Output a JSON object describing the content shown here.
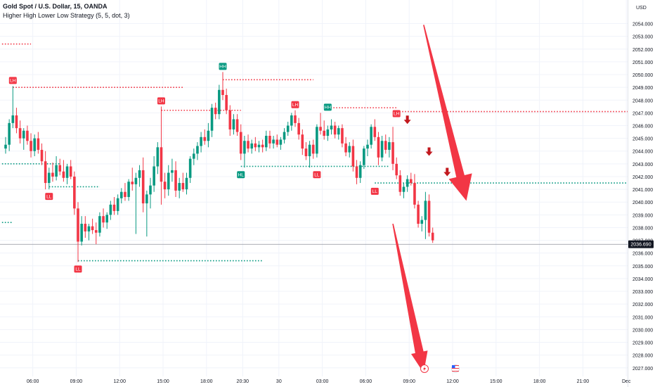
{
  "header": {
    "symbol_line": "Gold Spot / U.S. Dollar, 15, OANDA",
    "indicator_line": "Higher High Lower Low Strategy (5, 5, dot, 3)"
  },
  "chart_data": {
    "type": "candlestick",
    "currency_label": "USD",
    "current_price_label": "2036.690",
    "current_price": 2036.69,
    "ylim": [
      2026.6,
      2055.3
    ],
    "y_ticks": [
      2027,
      2028,
      2029,
      2030,
      2031,
      2032,
      2033,
      2034,
      2035,
      2036,
      2037,
      2038,
      2039,
      2040,
      2041,
      2042,
      2043,
      2044,
      2045,
      2046,
      2047,
      2048,
      2049,
      2050,
      2051,
      2052,
      2053,
      2054
    ],
    "y_tick_labels": [
      "2027.000",
      "2028.000",
      "2029.000",
      "2030.000",
      "2031.000",
      "2032.000",
      "2033.000",
      "2034.000",
      "2035.000",
      "2036.000",
      "2037.000",
      "2038.000",
      "2039.000",
      "2040.000",
      "2041.000",
      "2042.000",
      "2043.000",
      "2044.000",
      "2045.000",
      "2046.000",
      "2047.000",
      "2048.000",
      "2049.000",
      "2050.000",
      "2051.000",
      "2052.000",
      "2053.000",
      "2054.000"
    ],
    "x_ticks": [
      {
        "label": "06:00",
        "index": 7.5
      },
      {
        "label": "09:00",
        "index": 19.5
      },
      {
        "label": "12:00",
        "index": 31.5
      },
      {
        "label": "15:00",
        "index": 43.5
      },
      {
        "label": "18:00",
        "index": 55.5
      },
      {
        "label": "20:30",
        "index": 65.5
      },
      {
        "label": "30",
        "index": 75.5
      },
      {
        "label": "03:00",
        "index": 87.5
      },
      {
        "label": "06:00",
        "index": 99.5
      },
      {
        "label": "09:00",
        "index": 111.5
      },
      {
        "label": "12:00",
        "index": 123.5
      },
      {
        "label": "15:00",
        "index": 135.5
      },
      {
        "label": "18:00",
        "index": 147.5
      },
      {
        "label": "21:00",
        "index": 159.5
      },
      {
        "label": "Dec",
        "index": 171.5
      }
    ],
    "candles": [
      {
        "o": 2044.2,
        "h": 2045.1,
        "l": 2043.8,
        "c": 2044.5
      },
      {
        "o": 2044.5,
        "h": 2046.5,
        "l": 2044.0,
        "c": 2046.2
      },
      {
        "o": 2046.2,
        "h": 2049.1,
        "l": 2045.8,
        "c": 2046.8
      },
      {
        "o": 2046.8,
        "h": 2047.4,
        "l": 2045.4,
        "c": 2045.8
      },
      {
        "o": 2045.8,
        "h": 2046.4,
        "l": 2044.6,
        "c": 2045.0
      },
      {
        "o": 2045.0,
        "h": 2045.8,
        "l": 2044.1,
        "c": 2045.6
      },
      {
        "o": 2045.6,
        "h": 2046.0,
        "l": 2044.5,
        "c": 2044.8
      },
      {
        "o": 2044.8,
        "h": 2045.4,
        "l": 2043.5,
        "c": 2044.0
      },
      {
        "o": 2044.0,
        "h": 2045.3,
        "l": 2043.6,
        "c": 2045.0
      },
      {
        "o": 2045.0,
        "h": 2045.5,
        "l": 2043.8,
        "c": 2044.1
      },
      {
        "o": 2044.1,
        "h": 2044.6,
        "l": 2042.9,
        "c": 2043.2
      },
      {
        "o": 2043.2,
        "h": 2044.0,
        "l": 2041.0,
        "c": 2041.5
      },
      {
        "o": 2041.5,
        "h": 2042.7,
        "l": 2041.0,
        "c": 2042.3
      },
      {
        "o": 2042.3,
        "h": 2043.1,
        "l": 2041.6,
        "c": 2042.0
      },
      {
        "o": 2042.0,
        "h": 2043.6,
        "l": 2041.7,
        "c": 2042.9
      },
      {
        "o": 2042.9,
        "h": 2043.4,
        "l": 2042.1,
        "c": 2042.4
      },
      {
        "o": 2042.4,
        "h": 2043.3,
        "l": 2041.6,
        "c": 2041.9
      },
      {
        "o": 2041.9,
        "h": 2043.0,
        "l": 2041.4,
        "c": 2042.8
      },
      {
        "o": 2042.8,
        "h": 2043.3,
        "l": 2041.8,
        "c": 2042.0
      },
      {
        "o": 2042.0,
        "h": 2042.4,
        "l": 2039.0,
        "c": 2039.5
      },
      {
        "o": 2039.5,
        "h": 2040.0,
        "l": 2035.3,
        "c": 2036.9
      },
      {
        "o": 2036.9,
        "h": 2038.9,
        "l": 2036.6,
        "c": 2038.3
      },
      {
        "o": 2038.3,
        "h": 2038.9,
        "l": 2037.2,
        "c": 2037.7
      },
      {
        "o": 2037.7,
        "h": 2038.3,
        "l": 2037.0,
        "c": 2038.1
      },
      {
        "o": 2038.1,
        "h": 2038.7,
        "l": 2037.5,
        "c": 2037.8
      },
      {
        "o": 2037.8,
        "h": 2038.4,
        "l": 2036.7,
        "c": 2037.6
      },
      {
        "o": 2037.6,
        "h": 2039.2,
        "l": 2037.3,
        "c": 2038.9
      },
      {
        "o": 2038.9,
        "h": 2039.5,
        "l": 2038.0,
        "c": 2038.4
      },
      {
        "o": 2038.4,
        "h": 2039.2,
        "l": 2037.9,
        "c": 2039.0
      },
      {
        "o": 2039.0,
        "h": 2040.1,
        "l": 2038.6,
        "c": 2039.8
      },
      {
        "o": 2039.8,
        "h": 2040.4,
        "l": 2039.0,
        "c": 2039.3
      },
      {
        "o": 2039.3,
        "h": 2040.6,
        "l": 2039.0,
        "c": 2040.3
      },
      {
        "o": 2040.3,
        "h": 2041.1,
        "l": 2039.9,
        "c": 2040.8
      },
      {
        "o": 2040.8,
        "h": 2041.5,
        "l": 2040.1,
        "c": 2040.4
      },
      {
        "o": 2040.4,
        "h": 2041.8,
        "l": 2040.1,
        "c": 2041.6
      },
      {
        "o": 2041.6,
        "h": 2042.7,
        "l": 2040.9,
        "c": 2041.4
      },
      {
        "o": 2041.4,
        "h": 2042.3,
        "l": 2037.5,
        "c": 2041.9
      },
      {
        "o": 2041.9,
        "h": 2042.9,
        "l": 2041.2,
        "c": 2042.5
      },
      {
        "o": 2042.5,
        "h": 2043.5,
        "l": 2039.2,
        "c": 2039.9
      },
      {
        "o": 2039.9,
        "h": 2040.9,
        "l": 2037.3,
        "c": 2040.6
      },
      {
        "o": 2040.6,
        "h": 2041.9,
        "l": 2039.5,
        "c": 2041.3
      },
      {
        "o": 2041.3,
        "h": 2043.6,
        "l": 2040.8,
        "c": 2042.8
      },
      {
        "o": 2042.8,
        "h": 2044.7,
        "l": 2042.2,
        "c": 2044.3
      },
      {
        "o": 2044.3,
        "h": 2047.5,
        "l": 2039.8,
        "c": 2041.6
      },
      {
        "o": 2041.6,
        "h": 2042.3,
        "l": 2040.3,
        "c": 2041.0
      },
      {
        "o": 2041.0,
        "h": 2042.9,
        "l": 2040.5,
        "c": 2042.3
      },
      {
        "o": 2042.3,
        "h": 2043.4,
        "l": 2041.6,
        "c": 2042.5
      },
      {
        "o": 2042.5,
        "h": 2043.2,
        "l": 2040.4,
        "c": 2040.9
      },
      {
        "o": 2040.9,
        "h": 2041.9,
        "l": 2040.3,
        "c": 2041.5
      },
      {
        "o": 2041.5,
        "h": 2042.3,
        "l": 2040.8,
        "c": 2041.0
      },
      {
        "o": 2041.0,
        "h": 2042.3,
        "l": 2040.6,
        "c": 2041.9
      },
      {
        "o": 2041.9,
        "h": 2043.6,
        "l": 2041.5,
        "c": 2043.4
      },
      {
        "o": 2043.4,
        "h": 2044.2,
        "l": 2042.9,
        "c": 2043.8
      },
      {
        "o": 2043.8,
        "h": 2044.7,
        "l": 2043.3,
        "c": 2044.4
      },
      {
        "o": 2044.4,
        "h": 2045.5,
        "l": 2043.9,
        "c": 2045.1
      },
      {
        "o": 2045.1,
        "h": 2045.7,
        "l": 2044.5,
        "c": 2044.8
      },
      {
        "o": 2044.8,
        "h": 2046.2,
        "l": 2044.3,
        "c": 2045.6
      },
      {
        "o": 2045.6,
        "h": 2047.7,
        "l": 2045.1,
        "c": 2047.4
      },
      {
        "o": 2047.4,
        "h": 2047.8,
        "l": 2046.5,
        "c": 2046.9
      },
      {
        "o": 2046.9,
        "h": 2049.2,
        "l": 2046.5,
        "c": 2048.8
      },
      {
        "o": 2048.8,
        "h": 2050.2,
        "l": 2048.0,
        "c": 2048.4
      },
      {
        "o": 2048.4,
        "h": 2048.9,
        "l": 2046.9,
        "c": 2047.2
      },
      {
        "o": 2047.2,
        "h": 2047.6,
        "l": 2045.2,
        "c": 2045.7
      },
      {
        "o": 2045.7,
        "h": 2046.9,
        "l": 2045.3,
        "c": 2046.5
      },
      {
        "o": 2046.5,
        "h": 2046.9,
        "l": 2045.2,
        "c": 2045.5
      },
      {
        "o": 2045.5,
        "h": 2046.1,
        "l": 2043.3,
        "c": 2043.8
      },
      {
        "o": 2043.8,
        "h": 2045.2,
        "l": 2042.7,
        "c": 2044.8
      },
      {
        "o": 2044.8,
        "h": 2045.3,
        "l": 2043.9,
        "c": 2044.2
      },
      {
        "o": 2044.2,
        "h": 2044.9,
        "l": 2043.8,
        "c": 2044.6
      },
      {
        "o": 2044.6,
        "h": 2045.1,
        "l": 2044.0,
        "c": 2044.3
      },
      {
        "o": 2044.3,
        "h": 2044.8,
        "l": 2043.9,
        "c": 2044.5
      },
      {
        "o": 2044.5,
        "h": 2044.9,
        "l": 2043.9,
        "c": 2044.3
      },
      {
        "o": 2044.3,
        "h": 2045.6,
        "l": 2044.0,
        "c": 2045.2
      },
      {
        "o": 2045.2,
        "h": 2045.6,
        "l": 2044.2,
        "c": 2044.6
      },
      {
        "o": 2044.6,
        "h": 2045.2,
        "l": 2044.2,
        "c": 2044.9
      },
      {
        "o": 2044.9,
        "h": 2045.3,
        "l": 2044.3,
        "c": 2044.5
      },
      {
        "o": 2044.5,
        "h": 2045.1,
        "l": 2044.1,
        "c": 2044.9
      },
      {
        "o": 2044.9,
        "h": 2045.8,
        "l": 2044.6,
        "c": 2045.5
      },
      {
        "o": 2045.5,
        "h": 2046.3,
        "l": 2045.2,
        "c": 2046.0
      },
      {
        "o": 2046.0,
        "h": 2047.0,
        "l": 2045.6,
        "c": 2046.8
      },
      {
        "o": 2046.8,
        "h": 2047.2,
        "l": 2045.9,
        "c": 2046.2
      },
      {
        "o": 2046.2,
        "h": 2046.6,
        "l": 2044.9,
        "c": 2045.3
      },
      {
        "o": 2045.3,
        "h": 2045.7,
        "l": 2043.7,
        "c": 2044.2
      },
      {
        "o": 2044.2,
        "h": 2044.7,
        "l": 2043.3,
        "c": 2043.6
      },
      {
        "o": 2043.6,
        "h": 2044.8,
        "l": 2042.7,
        "c": 2044.5
      },
      {
        "o": 2044.5,
        "h": 2044.9,
        "l": 2043.4,
        "c": 2043.8
      },
      {
        "o": 2043.8,
        "h": 2046.1,
        "l": 2043.5,
        "c": 2045.9
      },
      {
        "o": 2045.9,
        "h": 2047.0,
        "l": 2045.3,
        "c": 2045.6
      },
      {
        "o": 2045.6,
        "h": 2046.4,
        "l": 2044.9,
        "c": 2045.2
      },
      {
        "o": 2045.2,
        "h": 2046.0,
        "l": 2044.8,
        "c": 2045.7
      },
      {
        "o": 2045.7,
        "h": 2046.5,
        "l": 2045.3,
        "c": 2046.0
      },
      {
        "o": 2046.0,
        "h": 2046.3,
        "l": 2045.0,
        "c": 2045.3
      },
      {
        "o": 2045.3,
        "h": 2046.0,
        "l": 2044.9,
        "c": 2045.8
      },
      {
        "o": 2045.8,
        "h": 2046.1,
        "l": 2044.3,
        "c": 2044.6
      },
      {
        "o": 2044.6,
        "h": 2045.1,
        "l": 2043.6,
        "c": 2043.9
      },
      {
        "o": 2043.9,
        "h": 2044.7,
        "l": 2043.5,
        "c": 2044.4
      },
      {
        "o": 2044.4,
        "h": 2044.9,
        "l": 2042.4,
        "c": 2042.8
      },
      {
        "o": 2042.8,
        "h": 2043.3,
        "l": 2041.4,
        "c": 2041.9
      },
      {
        "o": 2041.9,
        "h": 2043.2,
        "l": 2041.5,
        "c": 2042.9
      },
      {
        "o": 2042.9,
        "h": 2044.4,
        "l": 2042.6,
        "c": 2044.2
      },
      {
        "o": 2044.2,
        "h": 2044.9,
        "l": 2043.6,
        "c": 2044.5
      },
      {
        "o": 2044.5,
        "h": 2046.1,
        "l": 2044.2,
        "c": 2045.9
      },
      {
        "o": 2045.9,
        "h": 2046.5,
        "l": 2044.8,
        "c": 2045.1
      },
      {
        "o": 2045.1,
        "h": 2045.5,
        "l": 2042.9,
        "c": 2043.5
      },
      {
        "o": 2043.5,
        "h": 2045.2,
        "l": 2043.2,
        "c": 2044.8
      },
      {
        "o": 2044.8,
        "h": 2045.3,
        "l": 2043.8,
        "c": 2044.1
      },
      {
        "o": 2044.1,
        "h": 2045.1,
        "l": 2043.5,
        "c": 2044.7
      },
      {
        "o": 2044.7,
        "h": 2045.9,
        "l": 2042.5,
        "c": 2043.0
      },
      {
        "o": 2043.0,
        "h": 2043.5,
        "l": 2041.8,
        "c": 2042.1
      },
      {
        "o": 2042.1,
        "h": 2042.5,
        "l": 2040.5,
        "c": 2040.8
      },
      {
        "o": 2040.8,
        "h": 2041.5,
        "l": 2040.3,
        "c": 2041.2
      },
      {
        "o": 2041.2,
        "h": 2042.1,
        "l": 2040.8,
        "c": 2041.8
      },
      {
        "o": 2041.8,
        "h": 2042.3,
        "l": 2041.3,
        "c": 2041.5
      },
      {
        "o": 2041.5,
        "h": 2042.2,
        "l": 2039.5,
        "c": 2039.8
      },
      {
        "o": 2039.8,
        "h": 2040.1,
        "l": 2038.0,
        "c": 2038.3
      },
      {
        "o": 2038.3,
        "h": 2038.9,
        "l": 2037.7,
        "c": 2038.6
      },
      {
        "o": 2038.6,
        "h": 2040.8,
        "l": 2037.1,
        "c": 2040.1
      },
      {
        "o": 2040.1,
        "h": 2040.6,
        "l": 2037.3,
        "c": 2037.6
      },
      {
        "o": 2037.6,
        "h": 2038.0,
        "l": 2036.8,
        "c": 2037.0
      }
    ],
    "markers": [
      {
        "label": "LH",
        "index": 2,
        "price": 2049.1,
        "pos": "above",
        "color": "#f23645"
      },
      {
        "label": "LL",
        "index": 12,
        "price": 2041.0,
        "pos": "below",
        "color": "#f23645"
      },
      {
        "label": "LL",
        "index": 20,
        "price": 2035.3,
        "pos": "below",
        "color": "#f23645"
      },
      {
        "label": "LH",
        "index": 43,
        "price": 2047.5,
        "pos": "above",
        "color": "#f23645"
      },
      {
        "label": "HH",
        "index": 60,
        "price": 2050.2,
        "pos": "above",
        "color": "#089981"
      },
      {
        "label": "HL",
        "index": 65,
        "price": 2042.7,
        "pos": "below",
        "color": "#089981"
      },
      {
        "label": "LH",
        "index": 80,
        "price": 2047.2,
        "pos": "above",
        "color": "#f23645"
      },
      {
        "label": "LL",
        "index": 86,
        "price": 2042.7,
        "pos": "below",
        "color": "#f23645"
      },
      {
        "label": "HH",
        "index": 89,
        "price": 2047.0,
        "pos": "above",
        "color": "#089981"
      },
      {
        "label": "LL",
        "index": 102,
        "price": 2041.4,
        "pos": "below",
        "color": "#f23645"
      },
      {
        "label": "LH",
        "index": 108,
        "price": 2046.5,
        "pos": "above",
        "color": "#f23645"
      }
    ],
    "levels": [
      {
        "price": 2052.4,
        "from": -1,
        "to": 7,
        "color": "#f23645"
      },
      {
        "price": 2049.0,
        "from": 2,
        "to": 49,
        "color": "#f23645"
      },
      {
        "price": 2043.0,
        "from": -1,
        "to": 15,
        "color": "#089981"
      },
      {
        "price": 2041.2,
        "from": 12,
        "to": 26,
        "color": "#089981"
      },
      {
        "price": 2038.4,
        "from": -1,
        "to": 2,
        "color": "#089981"
      },
      {
        "price": 2035.4,
        "from": 20,
        "to": 71,
        "color": "#089981"
      },
      {
        "price": 2047.2,
        "from": 43,
        "to": 65,
        "color": "#f23645"
      },
      {
        "price": 2049.6,
        "from": 60,
        "to": 85,
        "color": "#f23645"
      },
      {
        "price": 2042.8,
        "from": 65,
        "to": 106,
        "color": "#089981"
      },
      {
        "price": 2047.4,
        "from": 89,
        "to": 108,
        "color": "#f23645"
      },
      {
        "price": 2047.1,
        "from": 108,
        "to": 181,
        "color": "#f23645"
      },
      {
        "price": 2041.5,
        "from": 102,
        "to": 181,
        "color": "#089981"
      }
    ],
    "down_arrows": [
      {
        "index": 111,
        "price": 2046.4
      },
      {
        "index": 117,
        "price": 2043.9
      },
      {
        "index": 122,
        "price": 2042.3
      }
    ],
    "colors": {
      "up": "#089981",
      "down": "#f23645",
      "annotation_arrow": "#f23645",
      "price_line": "#787b86",
      "price_label_bg": "#131722"
    },
    "event_icons": [
      "lightning-icon",
      "us-flag-icon"
    ]
  }
}
